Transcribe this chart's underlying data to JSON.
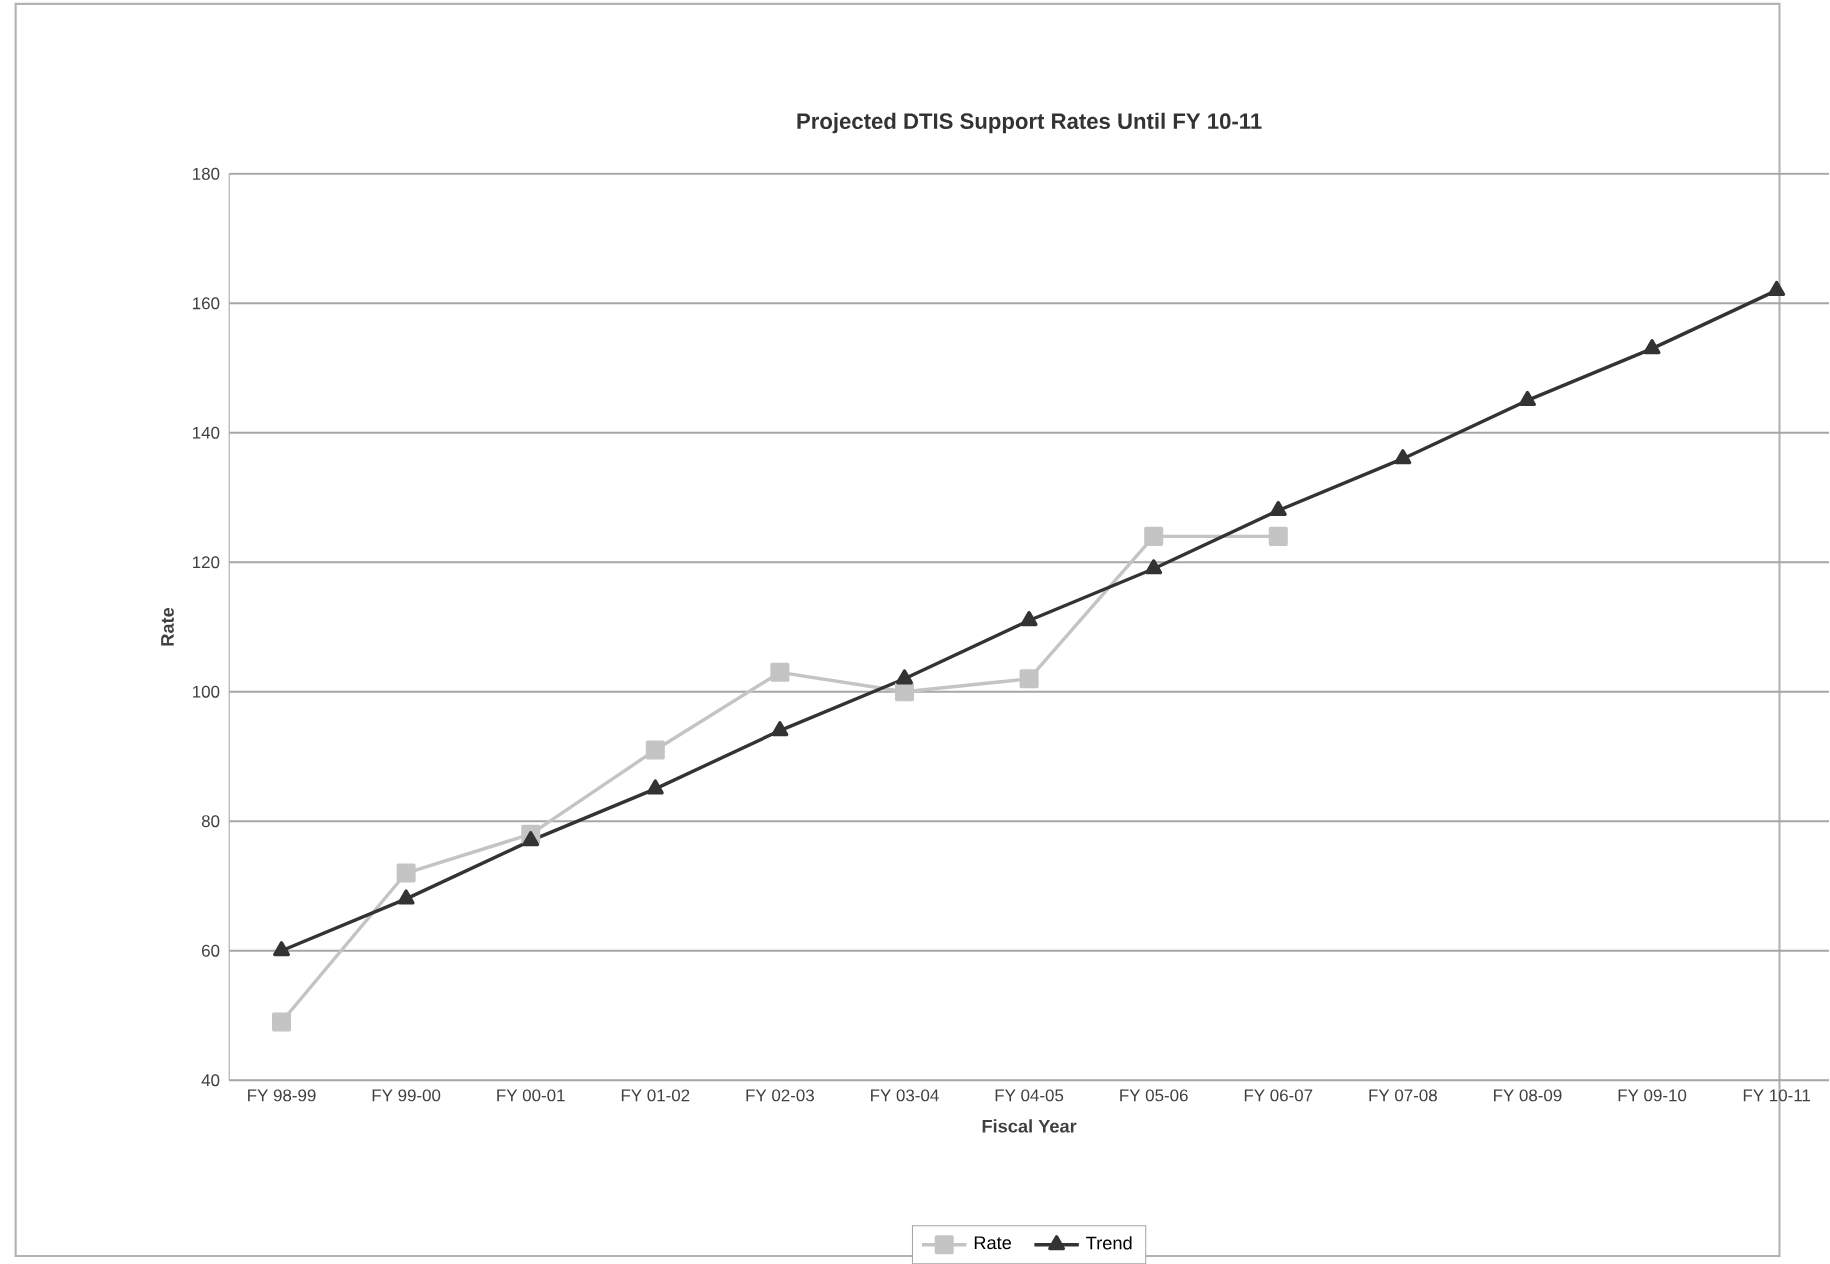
{
  "chart_data": {
    "type": "line",
    "title": "Projected DTIS Support Rates Until FY 10-11",
    "xlabel": "Fiscal Year",
    "ylabel": "Rate",
    "categories": [
      "FY 98-99",
      "FY 99-00",
      "FY 00-01",
      "FY 01-02",
      "FY 02-03",
      "FY 03-04",
      "FY 04-05",
      "FY 05-06",
      "FY 06-07",
      "FY 07-08",
      "FY 08-09",
      "FY 09-10",
      "FY 10-11"
    ],
    "series": [
      {
        "name": "Rate",
        "color": "#c4c4c4",
        "marker": "square",
        "values": [
          49,
          72,
          78,
          91,
          103,
          100,
          102,
          124,
          124,
          null,
          null,
          null,
          null
        ]
      },
      {
        "name": "Trend",
        "color": "#333333",
        "marker": "triangle",
        "values": [
          60,
          68,
          77,
          85,
          94,
          102,
          111,
          119,
          128,
          136,
          145,
          153,
          162
        ]
      }
    ],
    "ylim": [
      40,
      180
    ],
    "yticks": [
      40,
      60,
      80,
      100,
      120,
      140,
      160,
      180
    ],
    "grid": "y",
    "legend": "bottom",
    "line_style": "solid"
  }
}
